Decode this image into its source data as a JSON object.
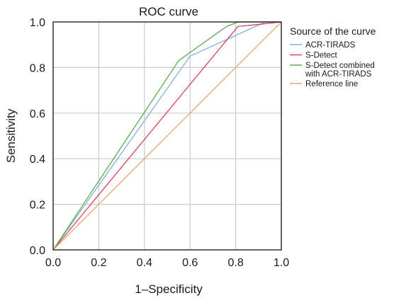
{
  "chart_data": {
    "type": "line",
    "title": "ROC curve",
    "xlabel": "1–Specificity",
    "ylabel": "Sensitivity",
    "xlim": [
      0,
      1
    ],
    "ylim": [
      0,
      1
    ],
    "xticks": [
      "0.0",
      "0.2",
      "0.4",
      "0.6",
      "0.8",
      "1.0"
    ],
    "yticks": [
      "0.0",
      "0.2",
      "0.4",
      "0.6",
      "0.8",
      "1.0"
    ],
    "grid": true,
    "legend_title": "Source of the curve",
    "legend_position": "right",
    "series": [
      {
        "name": "ACR-TIRADS",
        "color": "#7fb0e3",
        "points": [
          [
            0,
            0
          ],
          [
            0.6,
            0.85
          ],
          [
            0.93,
            1.0
          ],
          [
            1.0,
            1.0
          ]
        ]
      },
      {
        "name": "S-Detect",
        "color": "#d9445e",
        "points": [
          [
            0,
            0
          ],
          [
            0.81,
            0.98
          ],
          [
            0.91,
            0.99
          ],
          [
            1.0,
            1.0
          ]
        ]
      },
      {
        "name_lines": [
          "S-Detect combined",
          "with ACR-TIRADS"
        ],
        "color": "#5aad4a",
        "points": [
          [
            0,
            0
          ],
          [
            0.55,
            0.83
          ],
          [
            0.76,
            0.98
          ],
          [
            0.81,
            1.0
          ],
          [
            1.0,
            1.0
          ]
        ]
      },
      {
        "name": "Reference line",
        "color": "#f5a070",
        "points": [
          [
            0,
            0
          ],
          [
            1.0,
            1.0
          ]
        ]
      }
    ]
  }
}
